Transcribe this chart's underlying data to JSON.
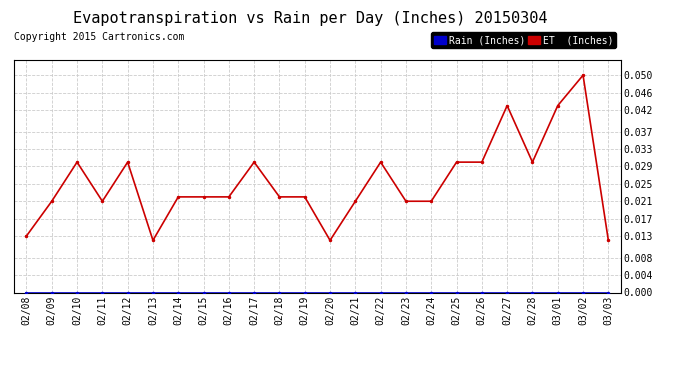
{
  "title": "Evapotranspiration vs Rain per Day (Inches) 20150304",
  "copyright": "Copyright 2015 Cartronics.com",
  "background_color": "#ffffff",
  "plot_bg_color": "#ffffff",
  "grid_color": "#cccccc",
  "x_labels": [
    "02/08",
    "02/09",
    "02/10",
    "02/11",
    "02/12",
    "02/13",
    "02/14",
    "02/15",
    "02/16",
    "02/17",
    "02/18",
    "02/19",
    "02/20",
    "02/21",
    "02/22",
    "02/23",
    "02/24",
    "02/25",
    "02/26",
    "02/27",
    "02/28",
    "03/01",
    "03/02",
    "03/03"
  ],
  "et_values": [
    0.013,
    0.021,
    0.03,
    0.021,
    0.03,
    0.012,
    0.022,
    0.022,
    0.022,
    0.03,
    0.022,
    0.022,
    0.012,
    0.021,
    0.03,
    0.021,
    0.021,
    0.03,
    0.03,
    0.043,
    0.03,
    0.043,
    0.05,
    0.012
  ],
  "rain_values": [
    0.0,
    0.0,
    0.0,
    0.0,
    0.0,
    0.0,
    0.0,
    0.0,
    0.0,
    0.0,
    0.0,
    0.0,
    0.0,
    0.0,
    0.0,
    0.0,
    0.0,
    0.0,
    0.0,
    0.0,
    0.0,
    0.0,
    0.0,
    0.0
  ],
  "et_color": "#cc0000",
  "rain_color": "#0000cc",
  "ylim": [
    0.0,
    0.0535
  ],
  "yticks": [
    0.0,
    0.004,
    0.008,
    0.013,
    0.017,
    0.021,
    0.025,
    0.029,
    0.033,
    0.037,
    0.042,
    0.046,
    0.05
  ],
  "legend_rain_label": "Rain (Inches)",
  "legend_et_label": "ET  (Inches)",
  "legend_rain_bg": "#0000cc",
  "legend_et_bg": "#cc0000",
  "legend_text_color": "#ffffff",
  "title_fontsize": 11,
  "copyright_fontsize": 7,
  "tick_fontsize": 7,
  "marker": ".",
  "marker_size": 3,
  "linewidth": 1.2
}
